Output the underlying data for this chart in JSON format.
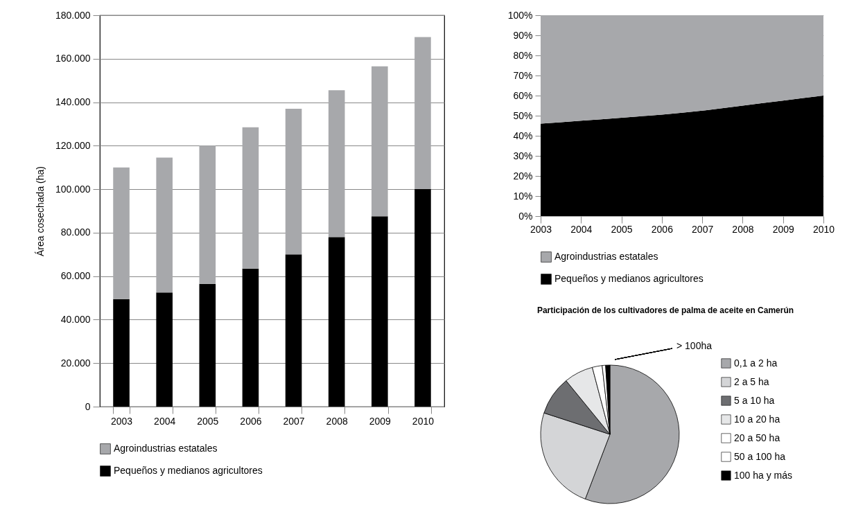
{
  "chart_data": [
    {
      "type": "bar",
      "stacked": true,
      "ylabel": "Área cosechada (ha)",
      "categories": [
        "2003",
        "2004",
        "2005",
        "2006",
        "2007",
        "2008",
        "2009",
        "2010"
      ],
      "series": [
        {
          "name": "Pequeños y medianos agricultores",
          "color": "#000000",
          "values": [
            49500,
            52500,
            56500,
            63500,
            70000,
            78000,
            87500,
            100000
          ]
        },
        {
          "name": "Agroindustrias estatales",
          "color": "#a7a8ab",
          "values": [
            60500,
            62000,
            63500,
            65000,
            67000,
            67500,
            69000,
            70000
          ]
        }
      ],
      "ylim": [
        0,
        180000
      ],
      "yticks": [
        0,
        {
          "value": 20000,
          "label": "20.000"
        },
        {
          "value": 40000,
          "label": "40.000"
        },
        {
          "value": 60000,
          "label": "60.000"
        },
        {
          "value": 80000,
          "label": "80.000"
        },
        {
          "value": 100000,
          "label": "100.000"
        },
        {
          "value": 120000,
          "label": "120.000"
        },
        {
          "value": 140000,
          "label": "140.000"
        },
        {
          "value": 160000,
          "label": "160.000"
        },
        {
          "value": 180000,
          "label": "180.000"
        }
      ],
      "grid": "y",
      "legend": "bottom"
    },
    {
      "type": "area",
      "stacked": true,
      "x": [
        2003,
        2004,
        2005,
        2006,
        2007,
        2008,
        2009,
        2010
      ],
      "series": [
        {
          "name": "Pequeños y medianos agricultores",
          "color": "#000000",
          "values": [
            46,
            47.5,
            49,
            50.5,
            52.5,
            55,
            57.5,
            60
          ]
        },
        {
          "name": "Agroindustrias estatales",
          "color": "#a7a8ab",
          "values": [
            54,
            52.5,
            51,
            49.5,
            47.5,
            45,
            42.5,
            40
          ]
        }
      ],
      "xlim": [
        2003,
        2010
      ],
      "xticks": [
        2003,
        2004,
        2005,
        2006,
        2007,
        2008,
        2009,
        2010
      ],
      "ylim": [
        0,
        100
      ],
      "yticks": [
        {
          "value": 0,
          "label": "0%"
        },
        {
          "value": 10,
          "label": "10%"
        },
        {
          "value": 20,
          "label": "20%"
        },
        {
          "value": 30,
          "label": "30%"
        },
        {
          "value": 40,
          "label": "40%"
        },
        {
          "value": 50,
          "label": "50%"
        },
        {
          "value": 60,
          "label": "60%"
        },
        {
          "value": 70,
          "label": "70%"
        },
        {
          "value": 80,
          "label": "80%"
        },
        {
          "value": 90,
          "label": "90%"
        },
        {
          "value": 100,
          "label": "100%"
        }
      ],
      "grid": "y",
      "legend": "bottom"
    },
    {
      "type": "pie",
      "title": "Participación de los cultivadores\nde palma de aceite en Camerún",
      "categories": [
        "0,1 a 2 ha",
        "2 a 5 ha",
        "5 a 10 ha",
        "10 a 20 ha",
        "20 a 50 ha",
        "50 a 100 ha",
        "100 ha y más"
      ],
      "values": [
        55.8,
        24.2,
        9.1,
        6.8,
        2.3,
        0.8,
        1.0
      ],
      "colors": [
        "#a7a8ab",
        "#d4d5d7",
        "#6d6e71",
        "#e6e7e8",
        "#ffffff",
        "#ffffff",
        "#000000"
      ],
      "annotations": [
        "> 100ha"
      ],
      "legend": "right"
    }
  ]
}
